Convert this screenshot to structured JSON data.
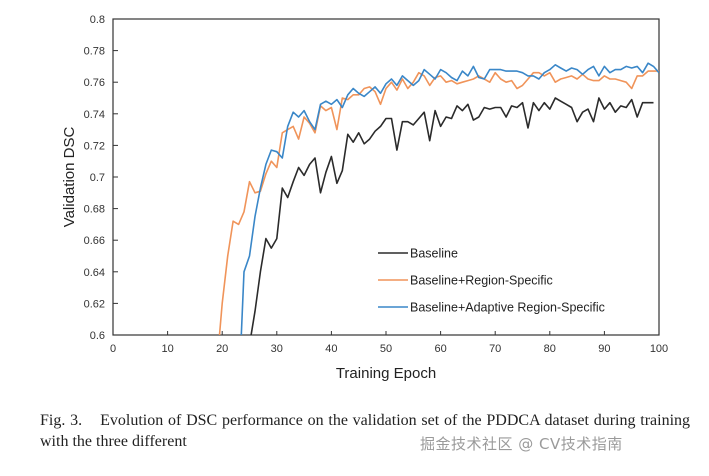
{
  "chart_data": {
    "type": "line",
    "title": "",
    "xlabel": "Training Epoch",
    "ylabel": "Validation DSC",
    "xlim": [
      0,
      100
    ],
    "ylim": [
      0.6,
      0.8
    ],
    "xticks": [
      0,
      10,
      20,
      30,
      40,
      50,
      60,
      70,
      80,
      90,
      100
    ],
    "yticks": [
      0.6,
      0.62,
      0.64,
      0.66,
      0.68,
      0.7,
      0.72,
      0.74,
      0.76,
      0.78,
      0.8
    ],
    "ytick_labels": [
      "0.6",
      "0.62",
      "0.64",
      "0.66",
      "0.68",
      "0.7",
      "0.72",
      "0.74",
      "0.76",
      "0.78",
      "0.8"
    ],
    "grid": false,
    "legend_position": "lower-right",
    "series": [
      {
        "name": "Baseline",
        "color": "#2b2b2b",
        "x": [
          25.3,
          26,
          27,
          28,
          29,
          30,
          31,
          32,
          33,
          34,
          35,
          36,
          37,
          38,
          39,
          40,
          41,
          42,
          43,
          44,
          45,
          46,
          47,
          48,
          49,
          50,
          51,
          52,
          53,
          54,
          55,
          56,
          57,
          58,
          59,
          60,
          61,
          62,
          63,
          64,
          65,
          66,
          67,
          68,
          69,
          70,
          71,
          72,
          73,
          74,
          75,
          76,
          77,
          78,
          79,
          80,
          81,
          82,
          83,
          84,
          85,
          86,
          87,
          88,
          89,
          90,
          91,
          92,
          93,
          94,
          95,
          96,
          97,
          98,
          99
        ],
        "values": [
          0.6,
          0.615,
          0.64,
          0.661,
          0.655,
          0.661,
          0.693,
          0.687,
          0.697,
          0.706,
          0.701,
          0.708,
          0.712,
          0.69,
          0.703,
          0.713,
          0.696,
          0.704,
          0.727,
          0.722,
          0.728,
          0.721,
          0.724,
          0.729,
          0.732,
          0.737,
          0.737,
          0.717,
          0.735,
          0.735,
          0.733,
          0.737,
          0.741,
          0.723,
          0.742,
          0.732,
          0.738,
          0.737,
          0.745,
          0.742,
          0.746,
          0.736,
          0.738,
          0.744,
          0.743,
          0.744,
          0.744,
          0.738,
          0.745,
          0.744,
          0.747,
          0.731,
          0.747,
          0.742,
          0.747,
          0.743,
          0.75,
          0.748,
          0.746,
          0.744,
          0.735,
          0.741,
          0.743,
          0.735,
          0.75,
          0.743,
          0.747,
          0.741,
          0.745,
          0.744,
          0.749,
          0.738,
          0.747,
          0.747,
          0.747
        ]
      },
      {
        "name": "Baseline+Region-Specific",
        "color": "#f0945a",
        "x": [
          19.5,
          20,
          21,
          22,
          23,
          24,
          25,
          26,
          27,
          28,
          29,
          30,
          31,
          32,
          33,
          34,
          35,
          36,
          37,
          38,
          39,
          40,
          41,
          42,
          43,
          44,
          45,
          46,
          47,
          48,
          49,
          50,
          51,
          52,
          53,
          54,
          55,
          56,
          57,
          58,
          59,
          60,
          61,
          62,
          63,
          64,
          65,
          66,
          67,
          68,
          69,
          70,
          71,
          72,
          73,
          74,
          75,
          76,
          77,
          78,
          79,
          80,
          81,
          82,
          83,
          84,
          85,
          86,
          87,
          88,
          89,
          90,
          91,
          92,
          93,
          94,
          95,
          96,
          97,
          98,
          99,
          100
        ],
        "values": [
          0.6,
          0.62,
          0.65,
          0.672,
          0.67,
          0.678,
          0.697,
          0.69,
          0.691,
          0.702,
          0.71,
          0.706,
          0.728,
          0.73,
          0.732,
          0.724,
          0.738,
          0.734,
          0.728,
          0.745,
          0.742,
          0.744,
          0.73,
          0.75,
          0.749,
          0.752,
          0.752,
          0.756,
          0.757,
          0.754,
          0.746,
          0.756,
          0.76,
          0.755,
          0.762,
          0.756,
          0.76,
          0.766,
          0.764,
          0.758,
          0.763,
          0.764,
          0.76,
          0.761,
          0.759,
          0.76,
          0.761,
          0.762,
          0.764,
          0.762,
          0.76,
          0.766,
          0.762,
          0.76,
          0.761,
          0.756,
          0.758,
          0.762,
          0.766,
          0.766,
          0.764,
          0.766,
          0.76,
          0.762,
          0.763,
          0.764,
          0.762,
          0.765,
          0.762,
          0.761,
          0.761,
          0.764,
          0.762,
          0.762,
          0.761,
          0.76,
          0.756,
          0.764,
          0.764,
          0.767,
          0.767,
          0.767
        ]
      },
      {
        "name": "Baseline+Adaptive Region-Specific",
        "color": "#3a87c8",
        "x": [
          23.5,
          24,
          25,
          26,
          27,
          28,
          29,
          30,
          31,
          32,
          33,
          34,
          35,
          36,
          37,
          38,
          39,
          40,
          41,
          42,
          43,
          44,
          45,
          46,
          47,
          48,
          49,
          50,
          51,
          52,
          53,
          54,
          55,
          56,
          57,
          58,
          59,
          60,
          61,
          62,
          63,
          64,
          65,
          66,
          67,
          68,
          69,
          70,
          71,
          72,
          73,
          74,
          75,
          76,
          77,
          78,
          79,
          80,
          81,
          82,
          83,
          84,
          85,
          86,
          87,
          88,
          89,
          90,
          91,
          92,
          93,
          94,
          95,
          96,
          97,
          98,
          99,
          100
        ],
        "values": [
          0.6,
          0.64,
          0.65,
          0.675,
          0.693,
          0.708,
          0.717,
          0.716,
          0.712,
          0.732,
          0.741,
          0.738,
          0.742,
          0.735,
          0.73,
          0.746,
          0.748,
          0.746,
          0.749,
          0.744,
          0.752,
          0.756,
          0.753,
          0.751,
          0.754,
          0.757,
          0.753,
          0.759,
          0.762,
          0.758,
          0.764,
          0.761,
          0.758,
          0.761,
          0.768,
          0.765,
          0.762,
          0.768,
          0.766,
          0.763,
          0.761,
          0.767,
          0.764,
          0.77,
          0.763,
          0.762,
          0.768,
          0.768,
          0.768,
          0.767,
          0.767,
          0.767,
          0.766,
          0.764,
          0.764,
          0.762,
          0.766,
          0.768,
          0.771,
          0.769,
          0.767,
          0.769,
          0.768,
          0.765,
          0.768,
          0.77,
          0.764,
          0.77,
          0.766,
          0.768,
          0.768,
          0.77,
          0.769,
          0.77,
          0.766,
          0.772,
          0.77,
          0.766
        ]
      }
    ]
  },
  "caption": {
    "figure_number": "Fig. 3.",
    "text": "Evolution of DSC performance on the validation set of the PDDCA dataset during training with the three different"
  },
  "watermark": "掘金技术社区 @ CV技术指南"
}
